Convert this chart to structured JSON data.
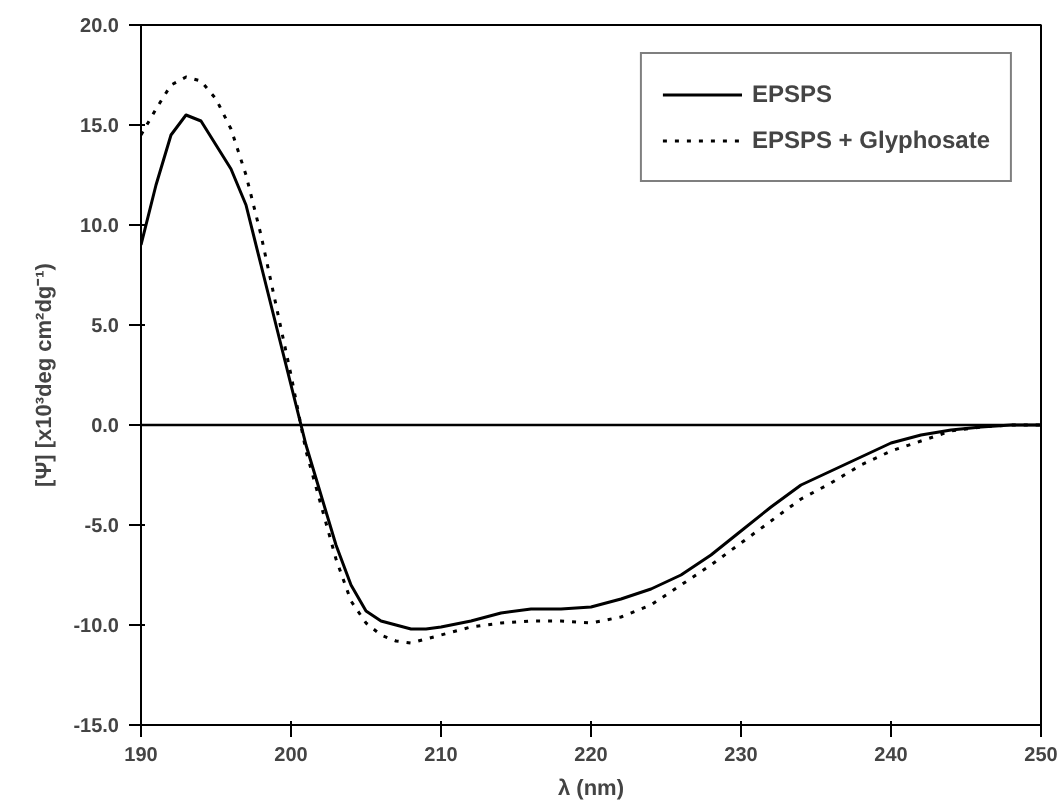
{
  "chart_data": {
    "type": "line",
    "xlabel": "λ (nm)",
    "ylabel": "[Ψ] [x10³deg cm²dg⁻¹)",
    "x": [
      190,
      191,
      192,
      193,
      194,
      195,
      196,
      197,
      198,
      199,
      200,
      201,
      202,
      203,
      204,
      205,
      206,
      207,
      208,
      209,
      210,
      212,
      214,
      216,
      218,
      220,
      222,
      224,
      226,
      228,
      230,
      232,
      234,
      236,
      238,
      240,
      242,
      244,
      246,
      248,
      250
    ],
    "series": [
      {
        "name": "EPSPS",
        "color": "#000000",
        "line_style": "solid",
        "values": [
          9,
          12,
          14.5,
          15.5,
          15.2,
          14,
          12.8,
          11,
          8,
          5,
          2,
          -1,
          -3.5,
          -6,
          -8,
          -9.3,
          -9.8,
          -10,
          -10.2,
          -10.2,
          -10.1,
          -9.8,
          -9.4,
          -9.2,
          -9.2,
          -9.1,
          -8.7,
          -8.2,
          -7.5,
          -6.5,
          -5.3,
          -4.1,
          -3,
          -2.3,
          -1.6,
          -0.9,
          -0.5,
          -0.25,
          -0.1,
          0,
          0
        ]
      },
      {
        "name": "EPSPS + Glyphosate",
        "color": "#000000",
        "line_style": "dotted",
        "values": [
          14.5,
          15.8,
          17,
          17.4,
          17.2,
          16.3,
          14.8,
          12.5,
          9.5,
          6,
          2.5,
          -1.3,
          -4,
          -6.7,
          -8.8,
          -9.9,
          -10.5,
          -10.8,
          -10.9,
          -10.7,
          -10.5,
          -10.1,
          -9.9,
          -9.8,
          -9.8,
          -9.9,
          -9.6,
          -9,
          -8,
          -7,
          -5.9,
          -4.8,
          -3.7,
          -2.9,
          -2,
          -1.3,
          -0.8,
          -0.3,
          -0.1,
          0,
          0
        ]
      }
    ],
    "xlim": [
      190,
      250
    ],
    "ylim": [
      -15,
      20
    ],
    "xticks": [
      190,
      200,
      210,
      220,
      230,
      240,
      250
    ],
    "yticks": [
      {
        "value": -15,
        "label": "-15.0"
      },
      {
        "value": -10,
        "label": "-10.0"
      },
      {
        "value": -5,
        "label": "-5.0"
      },
      {
        "value": 0,
        "label": "0.0"
      },
      {
        "value": 5,
        "label": "5.0"
      },
      {
        "value": 10,
        "label": "10.0"
      },
      {
        "value": 15,
        "label": "15.0"
      },
      {
        "value": 20,
        "label": "20.0"
      }
    ],
    "ref_lines": [
      {
        "axis": "y",
        "value": 0,
        "color": "#000000",
        "line_style": "solid"
      }
    ],
    "grid": false,
    "legend": "top right",
    "marker": "none"
  }
}
